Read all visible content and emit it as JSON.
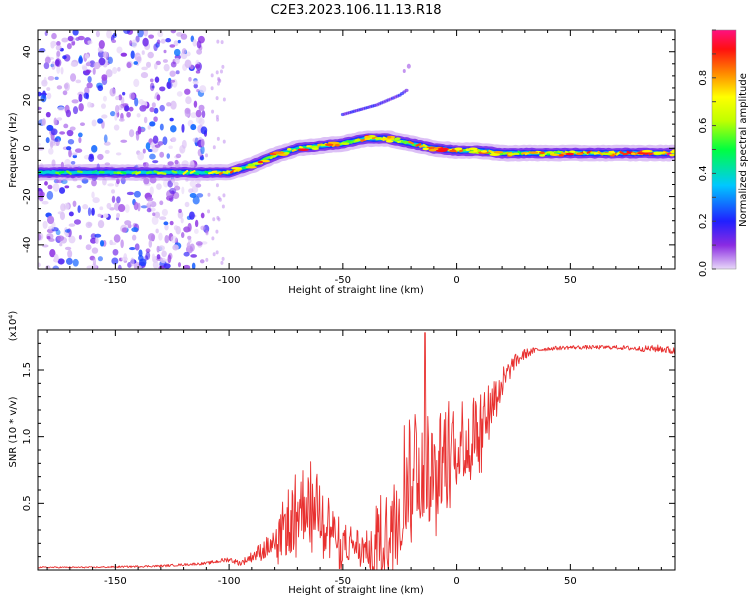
{
  "title": "C2E3.2023.106.11.13.R18",
  "chart_data": [
    {
      "type": "heatmap",
      "xlabel": "Height of straight line (km)",
      "ylabel": "Frequency (Hz)",
      "xlim": [
        -184,
        96
      ],
      "ylim": [
        -50,
        49
      ],
      "xticks": [
        -150,
        -100,
        -50,
        0,
        50
      ],
      "xtick_labels": [
        "-150",
        "-100",
        "-50",
        "0",
        "50"
      ],
      "yticks": [
        -40,
        -20,
        0,
        20,
        40
      ],
      "ytick_labels": [
        "-40",
        "-20",
        "0",
        "20",
        "40"
      ],
      "colorbar": {
        "label": "Normalized spectral amplitude",
        "range": [
          0,
          1
        ],
        "ticks": [
          0.0,
          0.2,
          0.4,
          0.6,
          0.8
        ],
        "tick_labels": [
          "0.0",
          "0.2",
          "0.4",
          "0.6",
          "0.8"
        ]
      },
      "ridge": {
        "x": [
          -184,
          -110,
          -100,
          -90,
          -80,
          -70,
          -60,
          -50,
          -40,
          -30,
          -20,
          -10,
          0,
          10,
          20,
          40,
          60,
          80,
          96
        ],
        "y": [
          -10,
          -10,
          -10,
          -7,
          -3,
          0,
          1,
          2,
          4,
          4,
          2,
          0,
          -1,
          -1,
          -2,
          -2,
          -2,
          -2,
          -2
        ],
        "amplitude": [
          0.45,
          0.6,
          0.75,
          0.5,
          0.55,
          0.6,
          0.65,
          0.7,
          0.7,
          0.6,
          0.7,
          0.8,
          0.75,
          0.7,
          0.65,
          0.6,
          0.8,
          0.85,
          0.85
        ]
      },
      "branch": {
        "x": [
          -50,
          -35,
          -25,
          -22
        ],
        "y": [
          14,
          18,
          22,
          24
        ]
      },
      "noise_region_x": [
        -184,
        -110
      ]
    },
    {
      "type": "line",
      "xlabel": "Height of straight line (km)",
      "ylabel": "SNR (10 * v/v)",
      "y_multiplier": "(x10⁴)",
      "xlim": [
        -184,
        96
      ],
      "ylim": [
        0,
        1.8
      ],
      "xticks": [
        -150,
        -100,
        -50,
        0,
        50
      ],
      "xtick_labels": [
        "-150",
        "-100",
        "-50",
        "0",
        "50"
      ],
      "yticks": [
        0.5,
        1.0,
        1.5
      ],
      "ytick_labels": [
        "0.5",
        "1.0",
        "1.5"
      ],
      "color": "#e8302f",
      "series": [
        {
          "name": "SNR",
          "x": [
            -184,
            -160,
            -130,
            -110,
            -100,
            -95,
            -90,
            -85,
            -80,
            -75,
            -70,
            -65,
            -60,
            -55,
            -50,
            -45,
            -40,
            -35,
            -30,
            -25,
            -20,
            -15,
            -10,
            -5,
            0,
            5,
            10,
            15,
            20,
            25,
            30,
            35,
            40,
            50,
            60,
            70,
            80,
            90,
            96
          ],
          "y": [
            0.02,
            0.02,
            0.03,
            0.05,
            0.08,
            0.05,
            0.1,
            0.15,
            0.2,
            0.35,
            0.45,
            0.55,
            0.5,
            0.3,
            0.2,
            0.2,
            0.15,
            0.25,
            0.3,
            0.6,
            0.8,
            0.9,
            0.7,
            0.9,
            1.0,
            1.0,
            1.1,
            1.25,
            1.4,
            1.55,
            1.62,
            1.65,
            1.66,
            1.67,
            1.67,
            1.67,
            1.66,
            1.66,
            1.64
          ],
          "noise_amplitude": [
            0.005,
            0.005,
            0.008,
            0.01,
            0.02,
            0.02,
            0.04,
            0.08,
            0.1,
            0.25,
            0.3,
            0.3,
            0.3,
            0.2,
            0.15,
            0.15,
            0.12,
            0.3,
            0.3,
            0.5,
            0.5,
            0.5,
            0.35,
            0.4,
            0.35,
            0.3,
            0.3,
            0.2,
            0.12,
            0.06,
            0.04,
            0.02,
            0.015,
            0.015,
            0.015,
            0.015,
            0.02,
            0.03,
            0.03
          ]
        }
      ],
      "spike": {
        "x": -14,
        "y": 1.78
      }
    }
  ]
}
